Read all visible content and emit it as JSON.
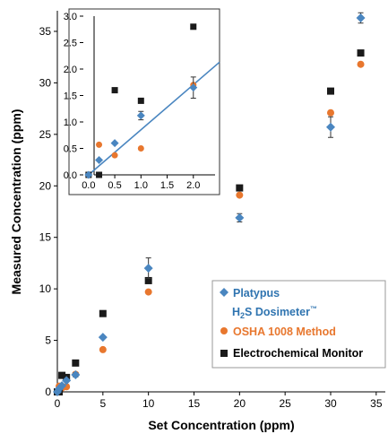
{
  "chart_data": [
    {
      "type": "scatter",
      "xlabel": "Set Concentration (ppm)",
      "ylabel": "Measured Concentration (ppm)",
      "xlim": [
        0,
        36
      ],
      "ylim": [
        0,
        37
      ],
      "x_ticks": [
        "0",
        "5",
        "10",
        "15",
        "20",
        "25",
        "30",
        "35"
      ],
      "y_ticks": [
        "0",
        "5",
        "10",
        "15",
        "20",
        "25",
        "30",
        "35"
      ],
      "legend_placement": "bottom-right",
      "legend": {
        "platypus_line1": "Platypus",
        "platypus_line2_pre": "H",
        "platypus_line2_sub": "2",
        "platypus_line2_mid": "S Dosimeter",
        "platypus_line2_sup": "™",
        "osha": "OSHA 1008 Method",
        "electro": "Electrochemical Monitor"
      },
      "series": [
        {
          "key": "platypus",
          "marker": "diamond",
          "color": "#4a86c0",
          "points": [
            {
              "x": 0,
              "y": 0,
              "err": 0
            },
            {
              "x": 0.2,
              "y": 0.3,
              "err": 0
            },
            {
              "x": 0.5,
              "y": 0.6,
              "err": 0
            },
            {
              "x": 1,
              "y": 1.1,
              "err": 0.1
            },
            {
              "x": 2,
              "y": 1.65,
              "err": 0.2
            },
            {
              "x": 5,
              "y": 5.3,
              "err": 0
            },
            {
              "x": 10,
              "y": 12.0,
              "err": 1.0
            },
            {
              "x": 20,
              "y": 16.9,
              "err": 0.4
            },
            {
              "x": 30,
              "y": 25.7,
              "err": 1.0
            },
            {
              "x": 33.3,
              "y": 36.3,
              "err": 0.5
            }
          ]
        },
        {
          "key": "osha",
          "marker": "circle",
          "color": "#e8772e",
          "points": [
            {
              "x": 0,
              "y": 0
            },
            {
              "x": 0.2,
              "y": 0.55
            },
            {
              "x": 0.5,
              "y": 0.38
            },
            {
              "x": 1,
              "y": 0.5
            },
            {
              "x": 2,
              "y": 1.7
            },
            {
              "x": 5,
              "y": 4.1
            },
            {
              "x": 10,
              "y": 9.7
            },
            {
              "x": 20,
              "y": 19.1
            },
            {
              "x": 30,
              "y": 27.1
            },
            {
              "x": 33.3,
              "y": 31.8
            }
          ]
        },
        {
          "key": "electro",
          "marker": "square",
          "color": "#1a1a1a",
          "points": [
            {
              "x": 0,
              "y": 0
            },
            {
              "x": 0.2,
              "y": 0
            },
            {
              "x": 0.5,
              "y": 1.6
            },
            {
              "x": 1,
              "y": 1.4
            },
            {
              "x": 2,
              "y": 2.8
            },
            {
              "x": 5,
              "y": 7.6
            },
            {
              "x": 10,
              "y": 10.8
            },
            {
              "x": 20,
              "y": 19.8
            },
            {
              "x": 30,
              "y": 29.2
            },
            {
              "x": 33.3,
              "y": 32.9
            }
          ]
        }
      ]
    },
    {
      "type": "scatter",
      "inset": true,
      "xlim": [
        -0.1,
        2.5
      ],
      "ylim": [
        0,
        3.0
      ],
      "x_ticks": [
        "0.0",
        "0.5",
        "1.0",
        "1.5",
        "2.0"
      ],
      "y_ticks": [
        "0.0",
        "0.5",
        "1.0",
        "1.5",
        "2.0",
        "2.5",
        "3.0"
      ],
      "trendline": {
        "x": [
          0,
          2.5
        ],
        "y": [
          0,
          2.13
        ],
        "color": "#4a86c0"
      },
      "series": [
        {
          "key": "platypus",
          "marker": "diamond",
          "color": "#4a86c0",
          "points": [
            {
              "x": 0,
              "y": 0,
              "err": 0
            },
            {
              "x": 0.2,
              "y": 0.28,
              "err": 0
            },
            {
              "x": 0.5,
              "y": 0.6,
              "err": 0
            },
            {
              "x": 1,
              "y": 1.12,
              "err": 0.08
            },
            {
              "x": 2,
              "y": 1.65,
              "err": 0.2
            }
          ]
        },
        {
          "key": "osha",
          "marker": "circle",
          "color": "#e8772e",
          "points": [
            {
              "x": 0,
              "y": 0
            },
            {
              "x": 0.2,
              "y": 0.57
            },
            {
              "x": 0.5,
              "y": 0.37
            },
            {
              "x": 1,
              "y": 0.5
            },
            {
              "x": 2,
              "y": 1.7
            }
          ]
        },
        {
          "key": "electro",
          "marker": "square",
          "color": "#1a1a1a",
          "points": [
            {
              "x": 0,
              "y": 0
            },
            {
              "x": 0.2,
              "y": 0
            },
            {
              "x": 0.5,
              "y": 1.6
            },
            {
              "x": 1,
              "y": 1.4
            },
            {
              "x": 2,
              "y": 2.8
            }
          ]
        }
      ]
    }
  ]
}
